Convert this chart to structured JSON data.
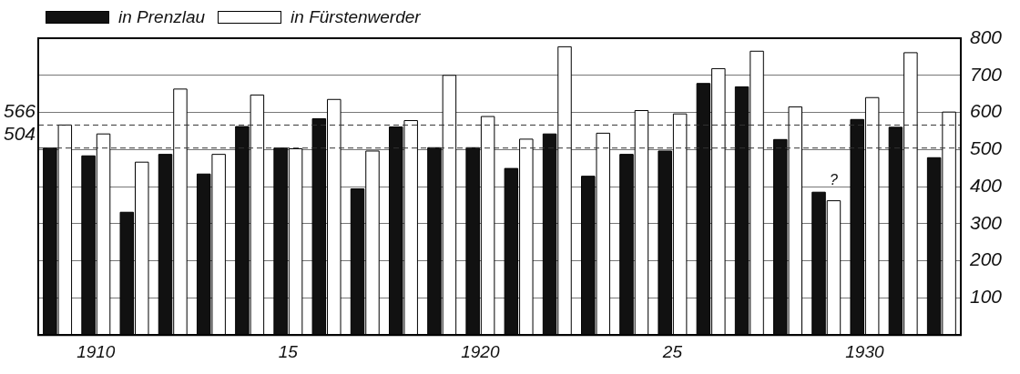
{
  "chart_data": {
    "type": "bar",
    "categories": [
      null,
      "1910",
      null,
      null,
      null,
      null,
      "15",
      null,
      null,
      null,
      null,
      "1920",
      null,
      null,
      null,
      null,
      "25",
      null,
      null,
      null,
      null,
      "1930",
      null,
      null
    ],
    "series": [
      {
        "name": "in Prenzlau",
        "color": "#111111",
        "values": [
          504,
          483,
          331,
          487,
          434,
          562,
          504,
          583,
          394,
          561,
          505,
          505,
          449,
          542,
          428,
          487,
          496,
          678,
          669,
          527,
          385,
          581,
          560,
          478
        ]
      },
      {
        "name": "in Fürstenwerder",
        "color": "#ffffff",
        "values": [
          566,
          542,
          466,
          663,
          487,
          647,
          502,
          635,
          496,
          578,
          700,
          589,
          528,
          777,
          544,
          605,
          596,
          718,
          765,
          615,
          362,
          640,
          761,
          601
        ]
      }
    ],
    "ylim": [
      0,
      800
    ],
    "yticks": [
      {
        "value": 0,
        "label": null
      },
      100,
      200,
      300,
      400,
      500,
      600,
      700,
      800
    ],
    "grid": "y",
    "legend": "top left",
    "ref_lines": [
      {
        "axis": "y",
        "value": 504,
        "label": "504",
        "line_style": "dashed"
      },
      {
        "axis": "y",
        "value": 566,
        "label": "566",
        "line_style": "dashed"
      }
    ],
    "annotations": [
      {
        "text": "?",
        "y": 362
      }
    ]
  }
}
